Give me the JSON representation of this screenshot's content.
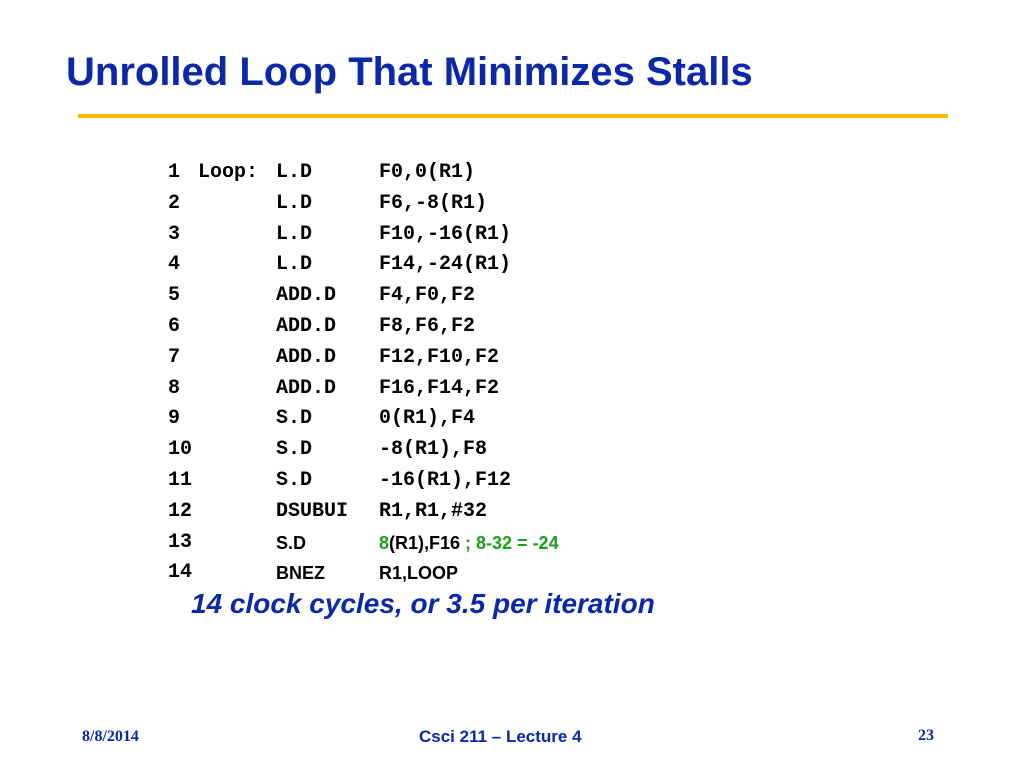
{
  "title": "Unrolled Loop That Minimizes Stalls",
  "code": {
    "lines": [
      {
        "num": "1",
        "label": "Loop:",
        "op": "L.D",
        "args": "F0,0(R1)"
      },
      {
        "num": "2",
        "label": "",
        "op": "L.D",
        "args": "F6,-8(R1)"
      },
      {
        "num": "3",
        "label": "",
        "op": "L.D",
        "args": "F10,-16(R1)"
      },
      {
        "num": "4",
        "label": "",
        "op": "L.D",
        "args": "F14,-24(R1)"
      },
      {
        "num": "5",
        "label": "",
        "op": "ADD.D",
        "args": "F4,F0,F2"
      },
      {
        "num": "6",
        "label": "",
        "op": "ADD.D",
        "args": "F8,F6,F2"
      },
      {
        "num": "7",
        "label": "",
        "op": "ADD.D",
        "args": "F12,F10,F2"
      },
      {
        "num": "8",
        "label": "",
        "op": "ADD.D",
        "args": "F16,F14,F2"
      },
      {
        "num": "9",
        "label": "",
        "op": "S.D",
        "args": "0(R1),F4"
      },
      {
        "num": "10",
        "label": "",
        "op": "S.D",
        "args": "-8(R1),F8"
      },
      {
        "num": "11",
        "label": "",
        "op": "S.D",
        "args": "-16(R1),F12"
      },
      {
        "num": "12",
        "label": "",
        "op": "DSUBUI",
        "args": "R1,R1,#32"
      }
    ],
    "line13": {
      "num": "13",
      "op": "S.D",
      "offset": "8",
      "args_rest": "(R1),F16",
      "comment": " ; 8-32 = -24"
    },
    "line14": {
      "num": "14",
      "op": "BNEZ",
      "args": "R1,LOOP"
    }
  },
  "summary": "14 clock cycles, or 3.5 per iteration",
  "footer": {
    "date": "8/8/2014",
    "course": "Csci 211 – Lecture 4",
    "page": "23"
  },
  "colors": {
    "title_blue": "#0a28a8",
    "rule_gold": "#f0c000",
    "highlight_green": "#1aa01a"
  }
}
